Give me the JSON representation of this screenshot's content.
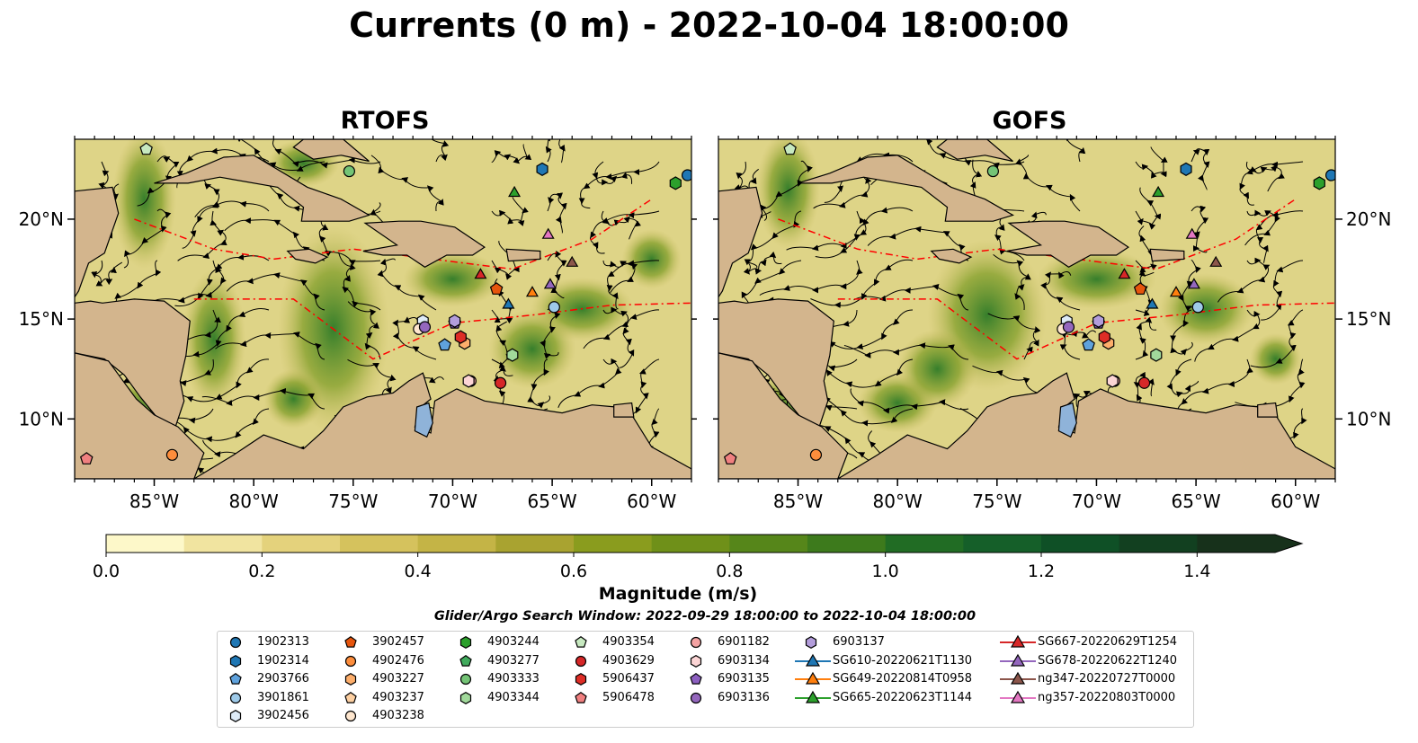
{
  "title": "Currents (0 m) - 2022-10-04 18:00:00",
  "panels": [
    {
      "id": "rtofs",
      "title": "RTOFS"
    },
    {
      "id": "gofs",
      "title": "GOFS"
    }
  ],
  "colors": {
    "land": "#d3b58d",
    "ocean_low": "#fcf6c0",
    "ocean_mid": "#c5b858",
    "ocean_high": "#1f6b2b",
    "lakes": "#8fb3d9",
    "eez_lines": "#ff0000",
    "streamlines": "#000000"
  },
  "chart_data": {
    "type": "map",
    "variable": "Currents (0 m)",
    "projection": "PlateCarree",
    "xlim": [
      -89,
      -58
    ],
    "ylim": [
      7,
      24
    ],
    "x_ticks": [
      -85,
      -80,
      -75,
      -70,
      -65,
      -60
    ],
    "x_tick_labels": [
      "85°W",
      "80°W",
      "75°W",
      "70°W",
      "65°W",
      "60°W"
    ],
    "y_ticks": [
      10,
      15,
      20
    ],
    "y_tick_labels": [
      "10°N",
      "15°N",
      "20°N"
    ],
    "colorbar": {
      "label": "Magnitude (m/s)",
      "min": 0.0,
      "max": 1.5,
      "extend": "max",
      "ticks": [
        0.0,
        0.2,
        0.4,
        0.6,
        0.8,
        1.0,
        1.2,
        1.4
      ],
      "tick_labels": [
        "0.0",
        "0.2",
        "0.4",
        "0.6",
        "0.8",
        "1.0",
        "1.2",
        "1.4"
      ],
      "colors": [
        "#fdf8c9",
        "#f1e4a0",
        "#e4d27c",
        "#d5c25d",
        "#c4b446",
        "#a9a330",
        "#8a9c1e",
        "#6f9019",
        "#56861a",
        "#3d7a1c",
        "#216c24",
        "#155f29",
        "#0f5026",
        "#124020",
        "#17311b"
      ]
    },
    "search_window": "Glider/Argo Search Window: 2022-09-29 18:00:00 to 2022-10-04 18:00:00",
    "legend_columns": [
      [
        {
          "label": "1902313",
          "marker": "circle",
          "color": "#1f77b4"
        },
        {
          "label": "1902314",
          "marker": "hexagon",
          "color": "#1f77b4"
        },
        {
          "label": "2903766",
          "marker": "pentagon",
          "color": "#5fa2dd"
        },
        {
          "label": "3901861",
          "marker": "circle",
          "color": "#9ecae9"
        },
        {
          "label": "3902456",
          "marker": "hexagon",
          "color": "#deebf7"
        }
      ],
      [
        {
          "label": "3902457",
          "marker": "pentagon",
          "color": "#e6550d"
        },
        {
          "label": "4902476",
          "marker": "circle",
          "color": "#fd8d3c"
        },
        {
          "label": "4903227",
          "marker": "hexagon",
          "color": "#fdae6b"
        },
        {
          "label": "4903237",
          "marker": "pentagon",
          "color": "#fdd0a2"
        },
        {
          "label": "4903238",
          "marker": "circle",
          "color": "#fee6ce"
        }
      ],
      [
        {
          "label": "4903244",
          "marker": "hexagon",
          "color": "#2ca02c"
        },
        {
          "label": "4903277",
          "marker": "pentagon",
          "color": "#41ab5d"
        },
        {
          "label": "4903333",
          "marker": "circle",
          "color": "#74c476"
        },
        {
          "label": "4903344",
          "marker": "hexagon",
          "color": "#a1d99b"
        }
      ],
      [
        {
          "label": "4903354",
          "marker": "pentagon",
          "color": "#c7e9c0"
        },
        {
          "label": "4903629",
          "marker": "circle",
          "color": "#d62728"
        },
        {
          "label": "5906437",
          "marker": "hexagon",
          "color": "#de2d26"
        },
        {
          "label": "5906478",
          "marker": "pentagon",
          "color": "#f08080"
        }
      ],
      [
        {
          "label": "6901182",
          "marker": "circle",
          "color": "#f4a3a3"
        },
        {
          "label": "6903134",
          "marker": "hexagon",
          "color": "#fcd5d5"
        },
        {
          "label": "6903135",
          "marker": "pentagon",
          "color": "#8c5fc0"
        },
        {
          "label": "6903136",
          "marker": "circle",
          "color": "#9467bd"
        }
      ],
      [
        {
          "label": "6903137",
          "marker": "hexagon",
          "color": "#b39ddb"
        },
        {
          "label": "SG610-20220621T1130",
          "marker": "triangle",
          "color": "#1f77b4",
          "line": true
        },
        {
          "label": "SG649-20220814T0958",
          "marker": "triangle",
          "color": "#ff7f0e",
          "line": true
        },
        {
          "label": "SG665-20220623T1144",
          "marker": "triangle",
          "color": "#2ca02c",
          "line": true
        }
      ],
      [
        {
          "label": "SG667-20220629T1254",
          "marker": "triangle",
          "color": "#d62728",
          "line": true
        },
        {
          "label": "SG678-20220622T1240",
          "marker": "triangle",
          "color": "#9467bd",
          "line": true
        },
        {
          "label": "ng347-20220727T0000",
          "marker": "triangle",
          "color": "#8c564b",
          "line": true
        },
        {
          "label": "ng357-20220803T0000",
          "marker": "triangle",
          "color": "#e377c2",
          "line": true
        }
      ]
    ],
    "observations": [
      {
        "id": "1902313",
        "lon": -58.2,
        "lat": 22.2
      },
      {
        "id": "1902314",
        "lon": -65.5,
        "lat": 22.5
      },
      {
        "id": "2903766",
        "lon": -70.4,
        "lat": 13.7
      },
      {
        "id": "3901861",
        "lon": -64.9,
        "lat": 15.6
      },
      {
        "id": "3902456",
        "lon": -71.5,
        "lat": 14.9
      },
      {
        "id": "3902457",
        "lon": -67.8,
        "lat": 16.5
      },
      {
        "id": "4902476",
        "lon": -84.1,
        "lat": 8.2
      },
      {
        "id": "4903227",
        "lon": -69.4,
        "lat": 13.8
      },
      {
        "id": "4903238",
        "lon": -71.7,
        "lat": 14.5
      },
      {
        "id": "4903244",
        "lon": -58.8,
        "lat": 21.8
      },
      {
        "id": "4903333",
        "lon": -75.2,
        "lat": 22.4
      },
      {
        "id": "4903344",
        "lon": -67.0,
        "lat": 13.2
      },
      {
        "id": "4903354",
        "lon": -85.4,
        "lat": 23.5
      },
      {
        "id": "4903629",
        "lon": -67.6,
        "lat": 11.8
      },
      {
        "id": "5906437",
        "lon": -69.6,
        "lat": 14.1
      },
      {
        "id": "5906478",
        "lon": -88.4,
        "lat": 8.0
      },
      {
        "id": "6901182",
        "lon": -69.1,
        "lat": 11.9
      },
      {
        "id": "6903134",
        "lon": -69.2,
        "lat": 11.9
      },
      {
        "id": "6903135",
        "lon": -69.9,
        "lat": 14.8
      },
      {
        "id": "6903136",
        "lon": -71.4,
        "lat": 14.6
      },
      {
        "id": "6903137",
        "lon": -69.9,
        "lat": 14.9
      },
      {
        "id": "SG610-20220621T1130",
        "lon": -67.2,
        "lat": 15.7
      },
      {
        "id": "SG649-20220814T0958",
        "lon": -66.0,
        "lat": 16.3
      },
      {
        "id": "SG665-20220623T1144",
        "lon": -66.9,
        "lat": 21.3
      },
      {
        "id": "SG667-20220629T1254",
        "lon": -68.6,
        "lat": 17.2
      },
      {
        "id": "SG678-20220622T1240",
        "lon": -65.1,
        "lat": 16.7
      },
      {
        "id": "ng347-20220727T0000",
        "lon": -64.0,
        "lat": 17.8
      },
      {
        "id": "ng357-20220803T0000",
        "lon": -65.2,
        "lat": 19.2
      }
    ]
  }
}
